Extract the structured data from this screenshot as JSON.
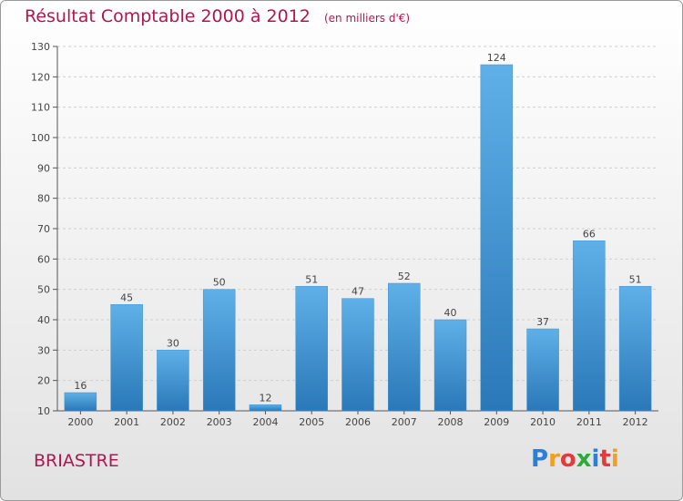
{
  "header": {
    "title": "Résultat Comptable 2000 à 2012",
    "unit": "(en milliers d'€)"
  },
  "commune": "BRIASTRE",
  "logo": {
    "text": "Proxiti",
    "letters": [
      "P",
      "r",
      "o",
      "x",
      "i",
      "t",
      "i"
    ],
    "colors": [
      "#2b7fd4",
      "#f0a020",
      "#e23b3b",
      "#2faa3a",
      "#2b7fd4",
      "#e23b3b",
      "#f0a020"
    ]
  },
  "colors": {
    "title": "#b0174f",
    "bar_light": "#5fb0e8",
    "bar_dark": "#2a78b8",
    "axis": "#555555",
    "grid": "#cfcfcf"
  },
  "chart_data": {
    "type": "bar",
    "title": "Résultat Comptable 2000 à 2012",
    "unit": "(en milliers d'€)",
    "categories": [
      "2000",
      "2001",
      "2002",
      "2003",
      "2004",
      "2005",
      "2006",
      "2007",
      "2008",
      "2009",
      "2010",
      "2011",
      "2012"
    ],
    "values": [
      16,
      45,
      30,
      50,
      12,
      51,
      47,
      52,
      40,
      124,
      37,
      66,
      51
    ],
    "ylim": [
      10,
      130
    ],
    "yticks": [
      10,
      20,
      30,
      40,
      50,
      60,
      70,
      80,
      90,
      100,
      110,
      120,
      130
    ],
    "xlabel": "",
    "ylabel": "",
    "grid": true
  }
}
